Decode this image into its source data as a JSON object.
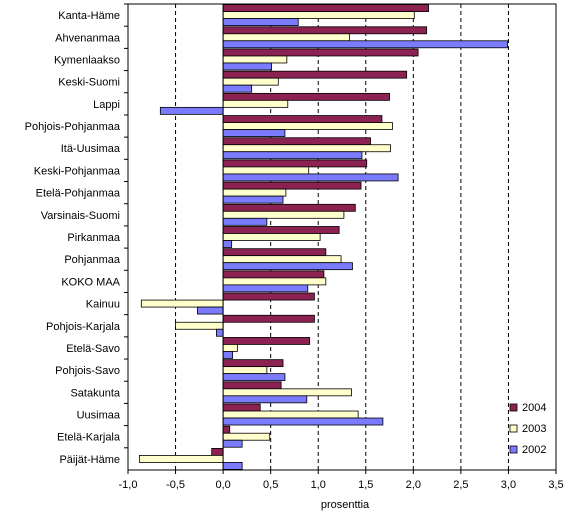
{
  "chart_data": {
    "type": "bar",
    "orientation": "horizontal",
    "title": "",
    "xlabel": "prosenttia",
    "ylabel": "",
    "xlim": [
      -1.0,
      3.5
    ],
    "x_ticks": [
      "-1,0",
      "-0,5",
      "0,0",
      "0,5",
      "1,0",
      "1,5",
      "2,0",
      "2,5",
      "3,0",
      "3,5"
    ],
    "x_tick_values": [
      -1.0,
      -0.5,
      0.0,
      0.5,
      1.0,
      1.5,
      2.0,
      2.5,
      3.0,
      3.5
    ],
    "grid": "vertical dashed",
    "legend_position": "bottom-right",
    "categories": [
      "Kanta-Häme",
      "Ahvenanmaa",
      "Kymenlaakso",
      "Keski-Suomi",
      "Lappi",
      "Pohjois-Pohjanmaa",
      "Itä-Uusimaa",
      "Keski-Pohjanmaa",
      "Etelä-Pohjanmaa",
      "Varsinais-Suomi",
      "Pirkanmaa",
      "Pohjanmaa",
      "KOKO MAA",
      "Kainuu",
      "Pohjois-Karjala",
      "Etelä-Savo",
      "Pohjois-Savo",
      "Satakunta",
      "Uusimaa",
      "Etelä-Karjala",
      "Päijät-Häme"
    ],
    "series": [
      {
        "name": "2004",
        "color": "#8b2252",
        "values": [
          2.16,
          2.14,
          2.05,
          1.93,
          1.75,
          1.67,
          1.55,
          1.51,
          1.45,
          1.39,
          1.22,
          1.08,
          1.06,
          0.96,
          0.96,
          0.91,
          0.63,
          0.61,
          0.39,
          0.07,
          -0.12
        ]
      },
      {
        "name": "2003",
        "color": "#ffffcc",
        "values": [
          2.01,
          1.33,
          0.67,
          0.58,
          0.68,
          1.78,
          1.76,
          0.9,
          0.66,
          1.27,
          1.02,
          1.24,
          1.08,
          -0.86,
          -0.5,
          0.15,
          0.46,
          1.35,
          1.42,
          0.49,
          -0.88
        ]
      },
      {
        "name": "2002",
        "color": "#7b7bff",
        "values": [
          0.79,
          2.99,
          0.51,
          0.3,
          -0.66,
          0.65,
          1.46,
          1.84,
          0.63,
          0.46,
          0.09,
          1.36,
          0.89,
          -0.27,
          -0.07,
          0.1,
          0.65,
          0.88,
          1.68,
          0.2,
          0.2
        ]
      }
    ]
  },
  "legend": {
    "order": [
      "2004",
      "2003",
      "2002"
    ]
  }
}
